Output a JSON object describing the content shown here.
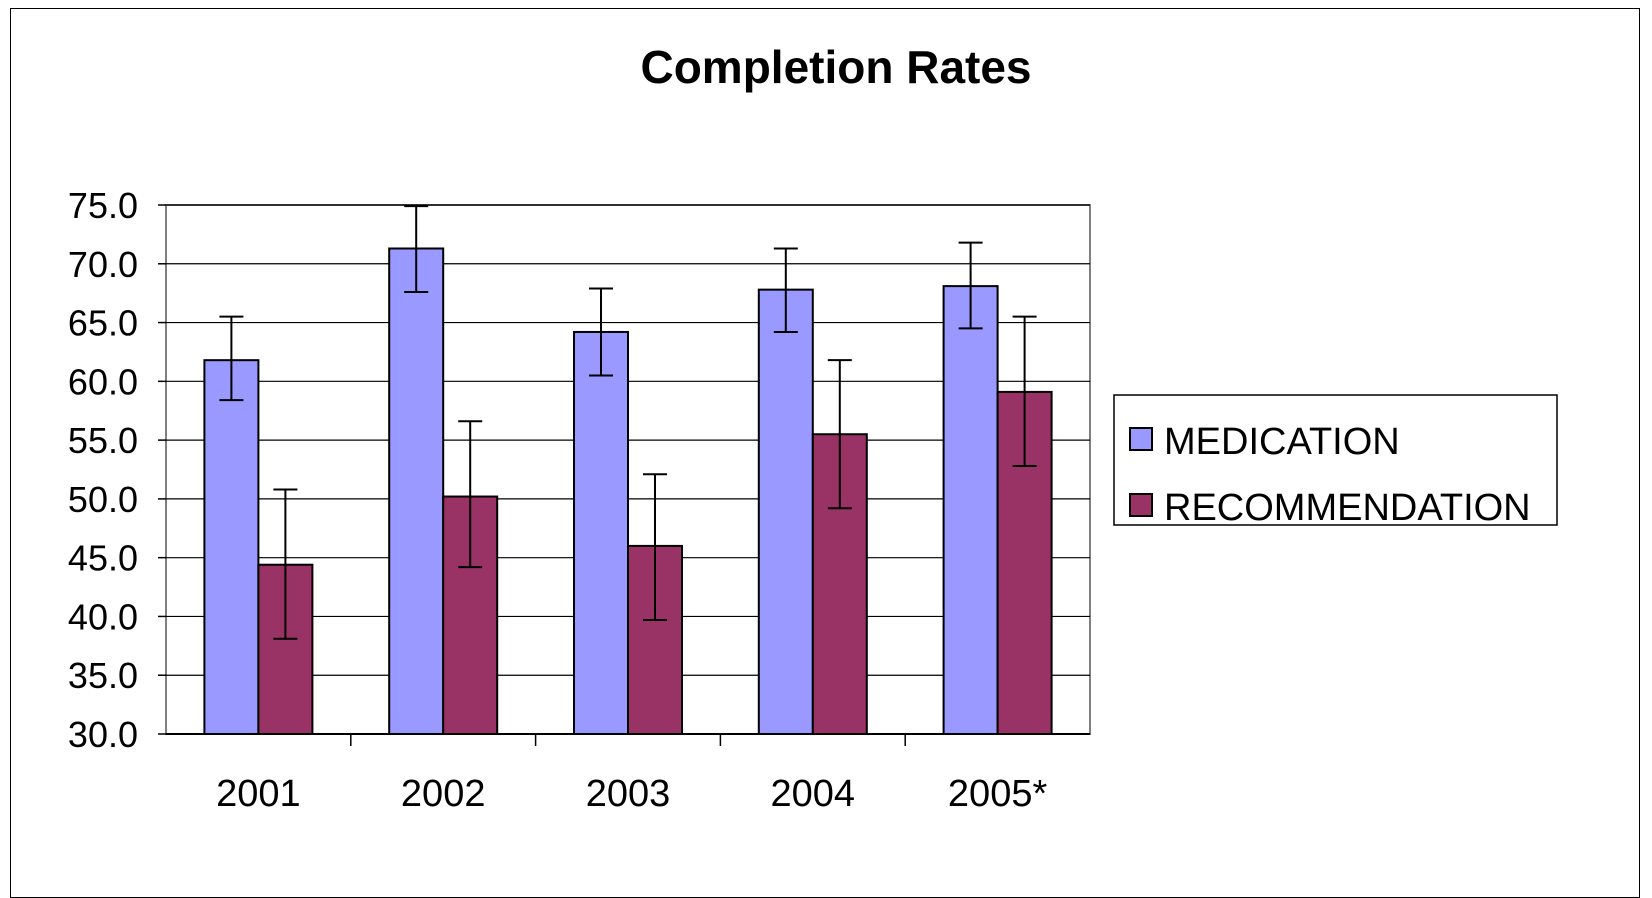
{
  "chart_data": {
    "type": "bar",
    "title": "Completion Rates",
    "xlabel": "",
    "ylabel": "",
    "categories": [
      "2001",
      "2002",
      "2003",
      "2004",
      "2005*"
    ],
    "ylim": [
      30,
      75
    ],
    "yticks": [
      "30.0",
      "35.0",
      "40.0",
      "45.0",
      "50.0",
      "55.0",
      "60.0",
      "65.0",
      "70.0",
      "75.0"
    ],
    "grid": true,
    "legend_position": "right",
    "series": [
      {
        "name": "MEDICATION",
        "color": "#9999ff",
        "values": [
          61.8,
          71.3,
          64.2,
          67.8,
          68.1
        ],
        "err_low": [
          58.4,
          67.6,
          60.5,
          64.2,
          64.5
        ],
        "err_high": [
          65.5,
          74.9,
          67.9,
          71.3,
          71.8
        ]
      },
      {
        "name": "RECOMMENDATION",
        "color": "#993366",
        "values": [
          44.4,
          50.2,
          46.0,
          55.5,
          59.1
        ],
        "err_low": [
          38.1,
          44.2,
          39.7,
          49.2,
          52.8
        ],
        "err_high": [
          50.8,
          56.6,
          52.1,
          61.8,
          65.5
        ]
      }
    ]
  }
}
